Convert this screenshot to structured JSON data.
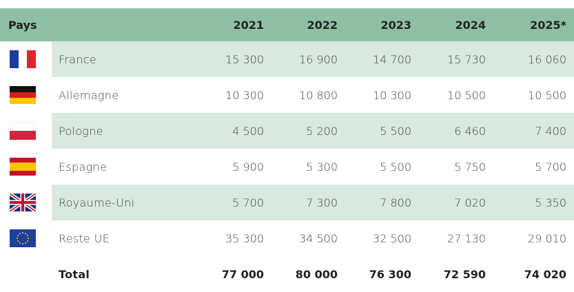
{
  "table": {
    "header": [
      "Pays",
      "2021",
      "2022",
      "2023",
      "2024",
      "2025*"
    ],
    "rows": [
      [
        "France",
        "15 300",
        "16 900",
        "14 700",
        "15 730",
        "16 060"
      ],
      [
        "Allemagne",
        "10 300",
        "10 800",
        "10 300",
        "10 500",
        "10 500"
      ],
      [
        "Pologne",
        "4 500",
        "5 200",
        "5 500",
        "6 460",
        "7 400"
      ],
      [
        "Espagne",
        "5 900",
        "5 300",
        "5 500",
        "5 750",
        "5 700"
      ],
      [
        "Royaume-Uni",
        "5 700",
        "7 300",
        "7 800",
        "7 020",
        "5 350"
      ],
      [
        "Reste UE",
        "35 300",
        "34 500",
        "32 500",
        "27 130",
        "29 010"
      ]
    ],
    "total": [
      "Total",
      "77 000",
      "80 000",
      "76 300",
      "72 590",
      "74 020"
    ]
  }
}
